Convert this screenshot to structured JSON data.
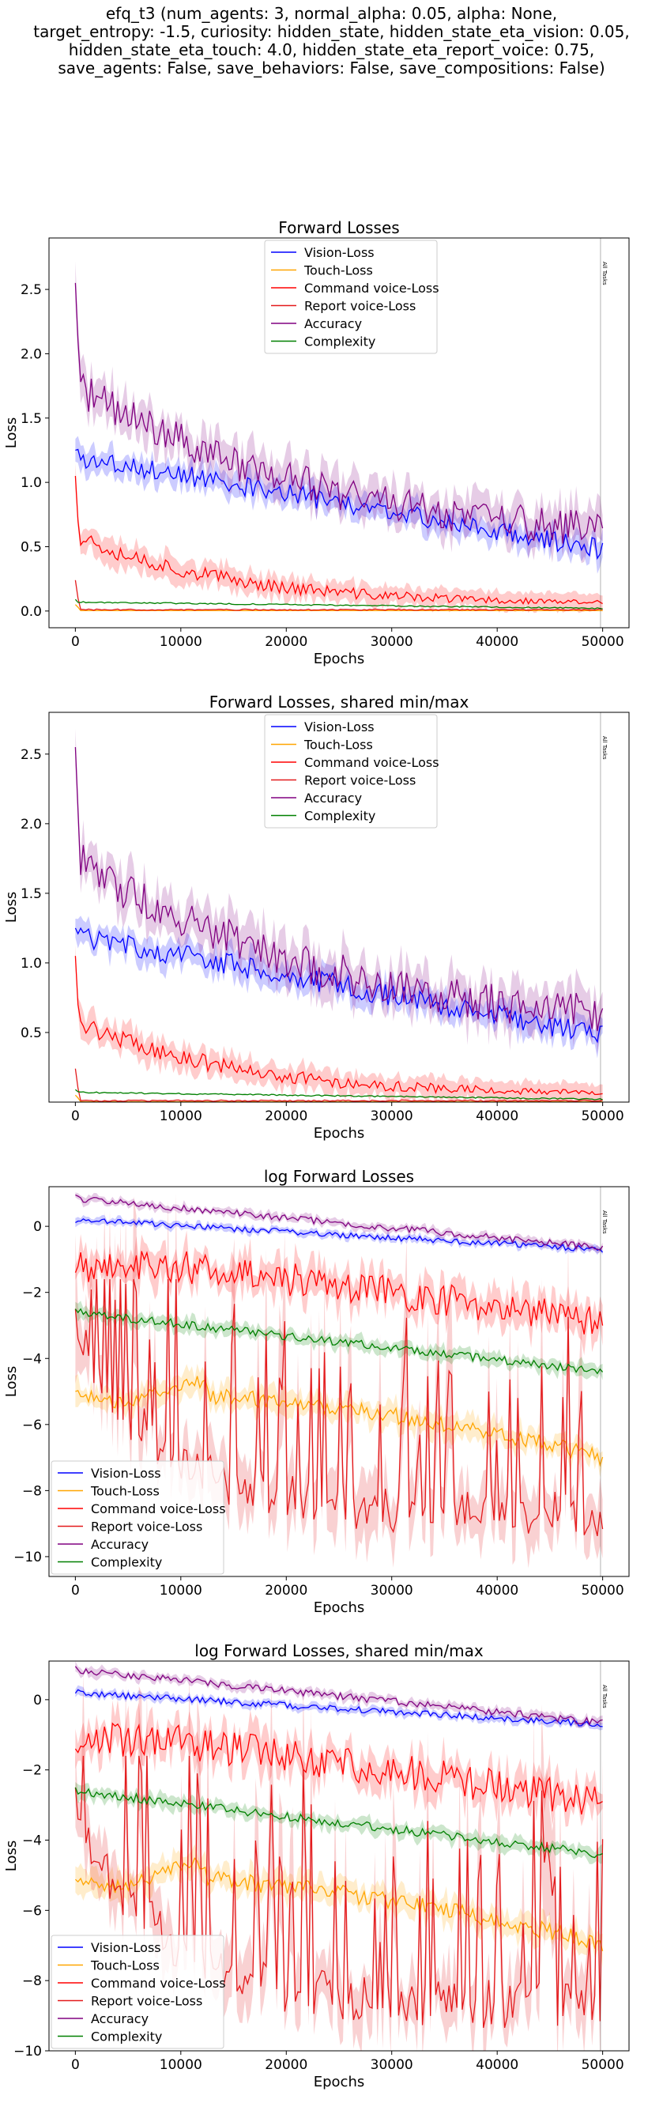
{
  "header": {
    "title_lines": [
      "efq_t3 (num_agents: 3, normal_alpha: 0.05, alpha: None,",
      "target_entropy: -1.5, curiosity: hidden_state, hidden_state_eta_vision: 0.05,",
      "hidden_state_eta_touch: 4.0, hidden_state_eta_report_voice: 0.75,",
      "save_agents: False, save_behaviors: False, save_compositions: False)"
    ]
  },
  "colors": {
    "vision": "#0000ff",
    "touch": "#ffa500",
    "command": "#ff0000",
    "report": "#e31a1c",
    "accuracy": "#800080",
    "complexity": "#008000"
  },
  "chart_data": [
    {
      "type": "line",
      "title": "Forward Losses",
      "xlabel": "Epochs",
      "ylabel": "Loss",
      "xlim": [
        -2500,
        52500
      ],
      "ylim": [
        -0.13,
        2.9
      ],
      "xticks": [
        0,
        10000,
        20000,
        30000,
        40000,
        50000
      ],
      "yticks": [
        0.0,
        0.5,
        1.0,
        1.5,
        2.0,
        2.5
      ],
      "ytick_labels": [
        "0.0",
        "0.5",
        "1.0",
        "1.5",
        "2.0",
        "2.5"
      ],
      "log": false,
      "shared": false,
      "legend_loc": "upper-center",
      "vline": {
        "x": 49800,
        "label": "All Tasks"
      },
      "series": [
        {
          "name": "Vision-Loss",
          "key": "vision"
        },
        {
          "name": "Touch-Loss",
          "key": "touch"
        },
        {
          "name": "Command voice-Loss",
          "key": "command"
        },
        {
          "name": "Report voice-Loss",
          "key": "report"
        },
        {
          "name": "Accuracy",
          "key": "accuracy"
        },
        {
          "name": "Complexity",
          "key": "complexity"
        }
      ]
    },
    {
      "type": "line",
      "title": "Forward Losses, shared min/max",
      "xlabel": "Epochs",
      "ylabel": "Loss",
      "xlim": [
        -2500,
        52500
      ],
      "ylim": [
        0.0,
        2.8
      ],
      "xticks": [
        0,
        10000,
        20000,
        30000,
        40000,
        50000
      ],
      "yticks": [
        0.5,
        1.0,
        1.5,
        2.0,
        2.5
      ],
      "ytick_labels": [
        "0.5",
        "1.0",
        "1.5",
        "2.0",
        "2.5"
      ],
      "log": false,
      "shared": true,
      "legend_loc": "upper-center",
      "vline": {
        "x": 49800,
        "label": "All Tasks"
      },
      "series": [
        {
          "name": "Vision-Loss",
          "key": "vision"
        },
        {
          "name": "Touch-Loss",
          "key": "touch"
        },
        {
          "name": "Command voice-Loss",
          "key": "command"
        },
        {
          "name": "Report voice-Loss",
          "key": "report"
        },
        {
          "name": "Accuracy",
          "key": "accuracy"
        },
        {
          "name": "Complexity",
          "key": "complexity"
        }
      ]
    },
    {
      "type": "line",
      "title": "log Forward Losses",
      "xlabel": "Epochs",
      "ylabel": "Loss",
      "xlim": [
        -2500,
        52500
      ],
      "ylim": [
        -10.6,
        1.2
      ],
      "xticks": [
        0,
        10000,
        20000,
        30000,
        40000,
        50000
      ],
      "yticks": [
        0,
        -2,
        -4,
        -6,
        -8,
        -10
      ],
      "ytick_labels": [
        "0",
        "−2",
        "−4",
        "−6",
        "−8",
        "−10"
      ],
      "log": true,
      "shared": false,
      "legend_loc": "lower-left",
      "vline": {
        "x": 49800,
        "label": "All Tasks"
      },
      "series": [
        {
          "name": "Vision-Loss",
          "key": "vision"
        },
        {
          "name": "Touch-Loss",
          "key": "touch"
        },
        {
          "name": "Command voice-Loss",
          "key": "command"
        },
        {
          "name": "Report voice-Loss",
          "key": "report"
        },
        {
          "name": "Accuracy",
          "key": "accuracy"
        },
        {
          "name": "Complexity",
          "key": "complexity"
        }
      ]
    },
    {
      "type": "line",
      "title": "log Forward Losses, shared min/max",
      "xlabel": "Epochs",
      "ylabel": "Loss",
      "xlim": [
        -2500,
        52500
      ],
      "ylim": [
        -10.0,
        1.1
      ],
      "xticks": [
        0,
        10000,
        20000,
        30000,
        40000,
        50000
      ],
      "yticks": [
        0,
        -2,
        -4,
        -6,
        -8,
        -10
      ],
      "ytick_labels": [
        "0",
        "−2",
        "−4",
        "−6",
        "−8",
        "−10"
      ],
      "log": true,
      "shared": true,
      "legend_loc": "lower-left",
      "vline": {
        "x": 49800,
        "label": "All Tasks"
      },
      "series": [
        {
          "name": "Vision-Loss",
          "key": "vision"
        },
        {
          "name": "Touch-Loss",
          "key": "touch"
        },
        {
          "name": "Command voice-Loss",
          "key": "command"
        },
        {
          "name": "Report voice-Loss",
          "key": "report"
        },
        {
          "name": "Accuracy",
          "key": "accuracy"
        },
        {
          "name": "Complexity",
          "key": "complexity"
        }
      ]
    }
  ]
}
